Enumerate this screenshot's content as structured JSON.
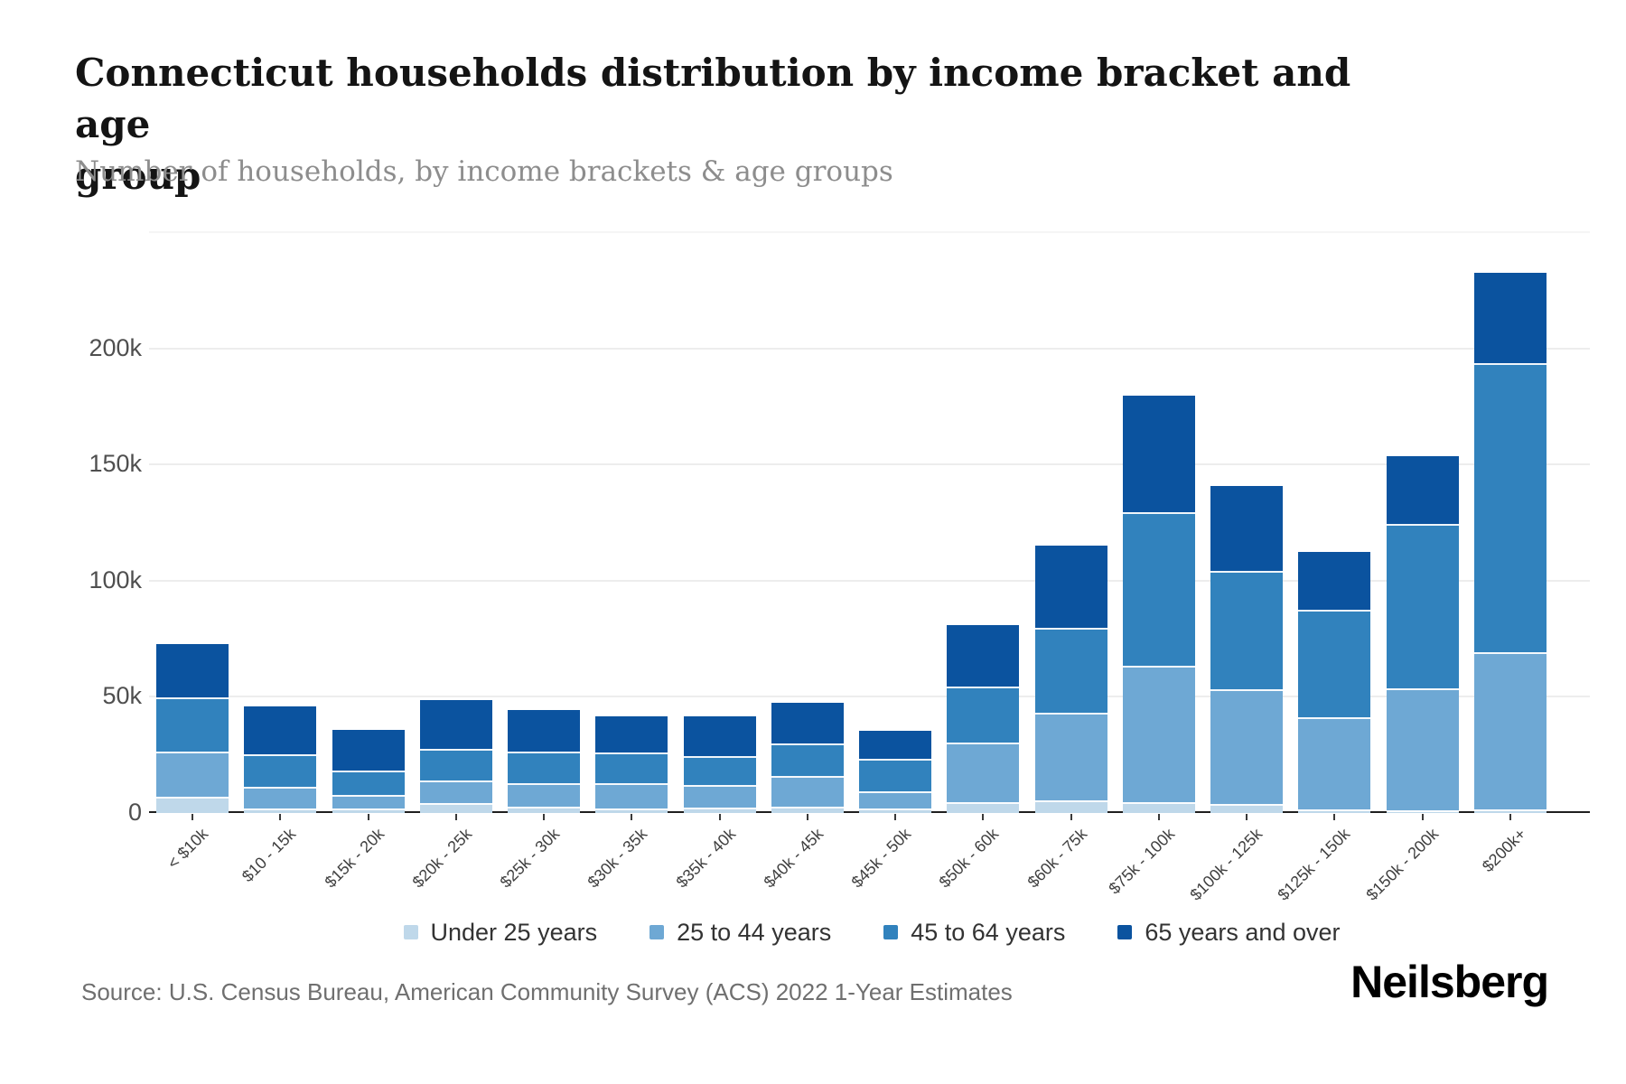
{
  "header": {
    "title": "Connecticut households distribution by income bracket and age group",
    "title_lines": [
      "Connecticut households distribution by income bracket and age",
      "group"
    ],
    "subtitle": "Number of households, by income brackets & age groups"
  },
  "chart_data": {
    "type": "bar",
    "stacked": true,
    "title": "Connecticut households distribution by income bracket and age group",
    "subtitle": "Number of households, by income brackets & age groups",
    "xlabel": "",
    "ylabel": "Number of households",
    "ylim": [
      0,
      250000
    ],
    "grid": true,
    "legend_position": "bottom",
    "yticks": [
      {
        "value": 0,
        "label": "0"
      },
      {
        "value": 50000,
        "label": "50k"
      },
      {
        "value": 100000,
        "label": "100k"
      },
      {
        "value": 150000,
        "label": "150k"
      },
      {
        "value": 200000,
        "label": "200k"
      }
    ],
    "unlabeled_gridlines": [
      250000
    ],
    "categories": [
      "< $10k",
      "$10 - 15k",
      "$15k - 20k",
      "$20k - 25k",
      "$25k - 30k",
      "$30k - 35k",
      "$35k - 40k",
      "$40k - 45k",
      "$45k - 50k",
      "$50k - 60k",
      "$60k - 75k",
      "$75k - 100k",
      "$100k - 125k",
      "$125k - 150k",
      "$150k - 200k",
      "$200k+"
    ],
    "series": [
      {
        "name": "Under 25 years",
        "color": "#bfd8ea",
        "values": [
          7000,
          2000,
          1900,
          4200,
          2600,
          1900,
          2400,
          2600,
          1900,
          4500,
          5400,
          4500,
          3900,
          1600,
          1100,
          1500
        ]
      },
      {
        "name": "25 to 44 years",
        "color": "#6ea8d4",
        "values": [
          19500,
          9300,
          5900,
          9800,
          10100,
          10800,
          9500,
          13300,
          7400,
          25900,
          37600,
          58900,
          49200,
          39800,
          52500,
          67800
        ]
      },
      {
        "name": "45 to 64 years",
        "color": "#3182bd",
        "values": [
          23200,
          13800,
          10300,
          13500,
          13800,
          13400,
          12700,
          13900,
          14000,
          24200,
          36900,
          66100,
          51200,
          46000,
          70700,
          124300
        ]
      },
      {
        "name": "65 years and over",
        "color": "#0b539f",
        "values": [
          23100,
          20600,
          17500,
          21100,
          17800,
          15600,
          17200,
          17500,
          12100,
          26300,
          35400,
          50100,
          36600,
          25000,
          29500,
          38800
        ]
      }
    ]
  },
  "footer": {
    "source": "Source: U.S. Census Bureau, American Community Survey (ACS) 2022 1-Year Estimates",
    "logo": "Neilsberg"
  }
}
